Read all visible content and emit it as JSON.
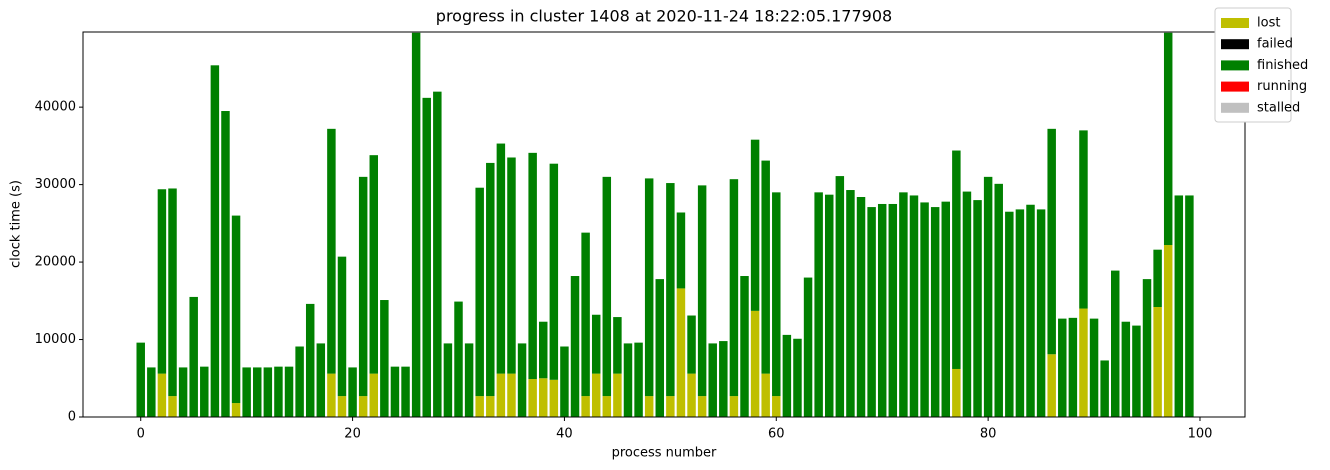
{
  "chart_data": {
    "type": "stacked_bar",
    "title": "progress in cluster 1408 at 2020-11-24 18:22:05.177908",
    "x_label": "process number",
    "y_label": "clock time (s)",
    "x": [
      0,
      1,
      2,
      3,
      4,
      5,
      6,
      7,
      8,
      9,
      10,
      11,
      12,
      13,
      14,
      15,
      16,
      17,
      18,
      19,
      20,
      21,
      22,
      23,
      24,
      25,
      26,
      27,
      28,
      29,
      30,
      31,
      32,
      33,
      34,
      35,
      36,
      37,
      38,
      39,
      40,
      41,
      42,
      43,
      44,
      45,
      46,
      47,
      48,
      49,
      50,
      51,
      52,
      53,
      54,
      55,
      56,
      57,
      58,
      59,
      60,
      61,
      62,
      63,
      64,
      65,
      66,
      67,
      68,
      69,
      70,
      71,
      72,
      73,
      74,
      75,
      76,
      77,
      78,
      79,
      80,
      81,
      82,
      83,
      84,
      85,
      86,
      87,
      88,
      89,
      90,
      91,
      92,
      93,
      94,
      95,
      96,
      97,
      98,
      99
    ],
    "series": [
      {
        "name": "lost",
        "color": "#bfbf00",
        "values": [
          0,
          0,
          5600,
          2700,
          0,
          0,
          0,
          0,
          0,
          1800,
          0,
          0,
          0,
          0,
          0,
          0,
          0,
          0,
          5600,
          2700,
          0,
          2700,
          5600,
          0,
          0,
          0,
          0,
          0,
          0,
          0,
          0,
          0,
          2700,
          2700,
          5600,
          5600,
          0,
          4900,
          5000,
          4800,
          0,
          0,
          2700,
          5600,
          2700,
          5600,
          0,
          0,
          2700,
          0,
          2700,
          16600,
          5600,
          2700,
          0,
          0,
          2700,
          0,
          13700,
          5600,
          2700,
          0,
          0,
          0,
          0,
          0,
          0,
          0,
          0,
          0,
          0,
          0,
          0,
          0,
          0,
          0,
          0,
          6200,
          0,
          0,
          0,
          0,
          0,
          0,
          0,
          0,
          8100,
          0,
          0,
          14000,
          0,
          0,
          0,
          0,
          0,
          0,
          14200,
          22200,
          0,
          0
        ]
      },
      {
        "name": "failed",
        "color": "#000000",
        "values": [
          0,
          0,
          0,
          0,
          0,
          0,
          0,
          0,
          0,
          0,
          0,
          0,
          0,
          0,
          0,
          0,
          0,
          0,
          0,
          0,
          0,
          0,
          0,
          0,
          0,
          0,
          0,
          0,
          0,
          0,
          0,
          0,
          0,
          0,
          0,
          0,
          0,
          0,
          0,
          0,
          0,
          0,
          0,
          0,
          0,
          0,
          0,
          0,
          0,
          0,
          0,
          0,
          0,
          0,
          0,
          0,
          0,
          0,
          0,
          0,
          0,
          0,
          0,
          0,
          0,
          0,
          0,
          0,
          0,
          0,
          0,
          0,
          0,
          0,
          0,
          0,
          0,
          0,
          0,
          0,
          0,
          0,
          0,
          0,
          0,
          0,
          0,
          0,
          0,
          0,
          0,
          0,
          0,
          0,
          0,
          0,
          0,
          0,
          0,
          0
        ]
      },
      {
        "name": "finished",
        "color": "#008000",
        "values": [
          9600,
          6400,
          23800,
          26800,
          6400,
          15500,
          6500,
          45400,
          39500,
          24200,
          6400,
          6400,
          6400,
          6500,
          6500,
          9100,
          14600,
          9500,
          31600,
          18000,
          6400,
          28300,
          28200,
          15100,
          6500,
          6500,
          49600,
          41200,
          42000,
          9500,
          14900,
          9500,
          26900,
          30100,
          29700,
          27900,
          9500,
          29200,
          7300,
          27900,
          9100,
          18200,
          21100,
          7600,
          28300,
          7300,
          9500,
          9600,
          28100,
          17800,
          27500,
          9800,
          7500,
          27200,
          9500,
          9800,
          28000,
          18200,
          22100,
          27500,
          26300,
          10600,
          10100,
          18000,
          29000,
          28700,
          31100,
          29300,
          28400,
          27100,
          27500,
          27500,
          29000,
          28600,
          27700,
          27100,
          27800,
          28200,
          29100,
          28000,
          31000,
          30100,
          26500,
          26800,
          27400,
          26800,
          29100,
          12700,
          12800,
          23000,
          12700,
          7300,
          18900,
          12300,
          11800,
          17800,
          7400,
          27400,
          28600,
          28600
        ]
      },
      {
        "name": "running",
        "color": "#ff0000",
        "values": [
          0,
          0,
          0,
          0,
          0,
          0,
          0,
          0,
          0,
          0,
          0,
          0,
          0,
          0,
          0,
          0,
          0,
          0,
          0,
          0,
          0,
          0,
          0,
          0,
          0,
          0,
          0,
          0,
          0,
          0,
          0,
          0,
          0,
          0,
          0,
          0,
          0,
          0,
          0,
          0,
          0,
          0,
          0,
          0,
          0,
          0,
          0,
          0,
          0,
          0,
          0,
          0,
          0,
          0,
          0,
          0,
          0,
          0,
          0,
          0,
          0,
          0,
          0,
          0,
          0,
          0,
          0,
          0,
          0,
          0,
          0,
          0,
          0,
          0,
          0,
          0,
          0,
          0,
          0,
          0,
          0,
          0,
          0,
          0,
          0,
          0,
          0,
          0,
          0,
          0,
          0,
          0,
          0,
          0,
          0,
          0,
          0,
          0,
          0,
          0
        ]
      },
      {
        "name": "stalled",
        "color": "#c0c0c0",
        "values": [
          0,
          0,
          0,
          0,
          0,
          0,
          0,
          0,
          0,
          0,
          0,
          0,
          0,
          0,
          0,
          0,
          0,
          0,
          0,
          0,
          0,
          0,
          0,
          0,
          0,
          0,
          0,
          0,
          0,
          0,
          0,
          0,
          0,
          0,
          0,
          0,
          0,
          0,
          0,
          0,
          0,
          0,
          0,
          0,
          0,
          0,
          0,
          0,
          0,
          0,
          0,
          0,
          0,
          0,
          0,
          0,
          0,
          0,
          0,
          0,
          0,
          0,
          0,
          0,
          0,
          0,
          0,
          0,
          0,
          0,
          0,
          0,
          0,
          0,
          0,
          0,
          0,
          0,
          0,
          0,
          0,
          0,
          0,
          0,
          0,
          0,
          0,
          0,
          0,
          0,
          0,
          0,
          0,
          0,
          0,
          0,
          0,
          0,
          0,
          0
        ]
      }
    ],
    "xlim": [
      -5.45,
      104.25
    ],
    "ylim": [
      0,
      49700
    ],
    "xticks": [
      0,
      20,
      40,
      60,
      80,
      100
    ],
    "yticks": [
      0,
      10000,
      20000,
      30000,
      40000
    ],
    "legend": "upper right"
  }
}
